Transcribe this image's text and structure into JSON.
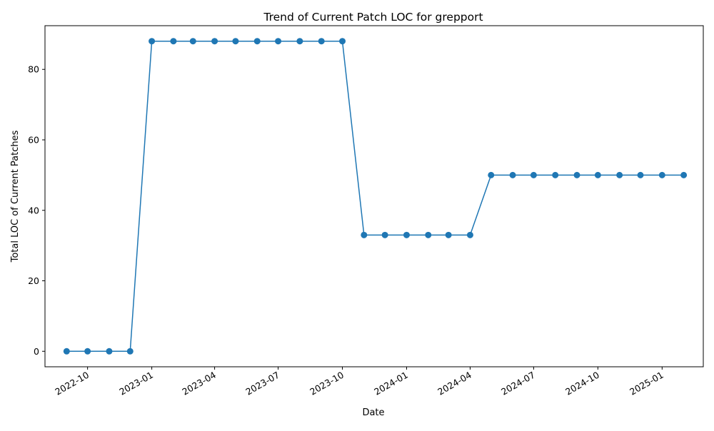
{
  "chart_data": {
    "type": "line",
    "title": "Trend of Current Patch LOC for grepport",
    "xlabel": "Date",
    "ylabel": "Total LOC of Current Patches",
    "x": [
      "2022-09-01",
      "2022-10-01",
      "2022-11-01",
      "2022-12-01",
      "2023-01-01",
      "2023-02-01",
      "2023-03-01",
      "2023-04-01",
      "2023-05-01",
      "2023-06-01",
      "2023-07-01",
      "2023-08-01",
      "2023-09-01",
      "2023-10-01",
      "2023-11-01",
      "2023-12-01",
      "2024-01-01",
      "2024-02-01",
      "2024-03-01",
      "2024-04-01",
      "2024-05-01",
      "2024-06-01",
      "2024-07-01",
      "2024-08-01",
      "2024-09-01",
      "2024-10-01",
      "2024-11-01",
      "2024-12-01",
      "2025-01-01",
      "2025-02-01"
    ],
    "series": [
      {
        "values": [
          0,
          0,
          0,
          0,
          88,
          88,
          88,
          88,
          88,
          88,
          88,
          88,
          88,
          88,
          33,
          33,
          33,
          33,
          33,
          33,
          50,
          50,
          50,
          50,
          50,
          50,
          50,
          50,
          50,
          50
        ],
        "color": "#1f77b4"
      }
    ],
    "x_ticks": [
      "2022-10",
      "2023-01",
      "2023-04",
      "2023-07",
      "2023-10",
      "2024-01",
      "2024-04",
      "2024-07",
      "2024-10",
      "2025-01"
    ],
    "y_ticks": [
      0,
      20,
      40,
      60,
      80
    ],
    "xlim": [
      "2022-08-01",
      "2025-03-01"
    ],
    "ylim": [
      -4.4,
      92.4
    ],
    "grid": false,
    "markers": "circle"
  }
}
